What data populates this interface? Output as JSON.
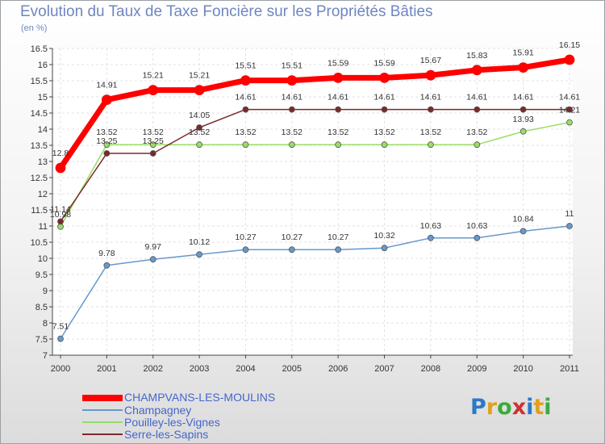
{
  "title": "Evolution du Taux de Taxe Foncière sur les Propriétés Bâties",
  "unit_label": "(en %)",
  "logo": {
    "text": "Proxiti",
    "letters": [
      "P",
      "r",
      "o",
      "x",
      "i",
      "t",
      "i"
    ],
    "colors": [
      "#2e78c8",
      "#e0a020",
      "#3caa3c",
      "#d03030",
      "#2e78c8",
      "#e0a020",
      "#3caa3c"
    ]
  },
  "chart_data": {
    "type": "line",
    "x": [
      "2000",
      "2001",
      "2002",
      "2003",
      "2004",
      "2005",
      "2006",
      "2007",
      "2008",
      "2009",
      "2010",
      "2011"
    ],
    "ylim": [
      7,
      16.5
    ],
    "yticks": [
      "7",
      "7.5",
      "8",
      "8.5",
      "9",
      "9.5",
      "10",
      "10.5",
      "11",
      "11.5",
      "12",
      "12.5",
      "13",
      "13.5",
      "14",
      "14.5",
      "15",
      "15.5",
      "16",
      "16.5"
    ],
    "grid": true,
    "series": [
      {
        "name": "CHAMPVANS-LES-MOULINS",
        "color": "#ff0000",
        "values": [
          12.8,
          14.91,
          15.21,
          15.21,
          15.51,
          15.51,
          15.59,
          15.59,
          15.67,
          15.83,
          15.91,
          16.15
        ],
        "labels": [
          "12.8",
          "14.91",
          "15.21",
          "15.21",
          "15.51",
          "15.51",
          "15.59",
          "15.59",
          "15.67",
          "15.83",
          "15.91",
          "16.15"
        ]
      },
      {
        "name": "Champagney",
        "color": "#6699cc",
        "values": [
          7.51,
          9.78,
          9.97,
          10.12,
          10.27,
          10.27,
          10.27,
          10.32,
          10.63,
          10.63,
          10.84,
          11
        ],
        "labels": [
          "7.51",
          "9.78",
          "9.97",
          "10.12",
          "10.27",
          "10.27",
          "10.27",
          "10.32",
          "10.63",
          "10.63",
          "10.84",
          "11"
        ]
      },
      {
        "name": "Pouilley-les-Vignes",
        "color": "#99dd66",
        "values": [
          10.98,
          13.52,
          13.52,
          13.52,
          13.52,
          13.52,
          13.52,
          13.52,
          13.52,
          13.52,
          13.93,
          14.21
        ],
        "labels": [
          "10.98",
          "13.52",
          "13.52",
          "13.52",
          "13.52",
          "13.52",
          "13.52",
          "13.52",
          "13.52",
          "13.52",
          "13.93",
          "14.21"
        ]
      },
      {
        "name": "Serre-les-Sapins",
        "color": "#7a2a2a",
        "values": [
          11.14,
          13.25,
          13.25,
          14.05,
          14.61,
          14.61,
          14.61,
          14.61,
          14.61,
          14.61,
          14.61,
          14.61
        ],
        "labels": [
          "11.14",
          "13.25",
          "13.25",
          "14.05",
          "14.61",
          "14.61",
          "14.61",
          "14.61",
          "14.61",
          "14.61",
          "14.61",
          "14.61"
        ]
      }
    ]
  }
}
